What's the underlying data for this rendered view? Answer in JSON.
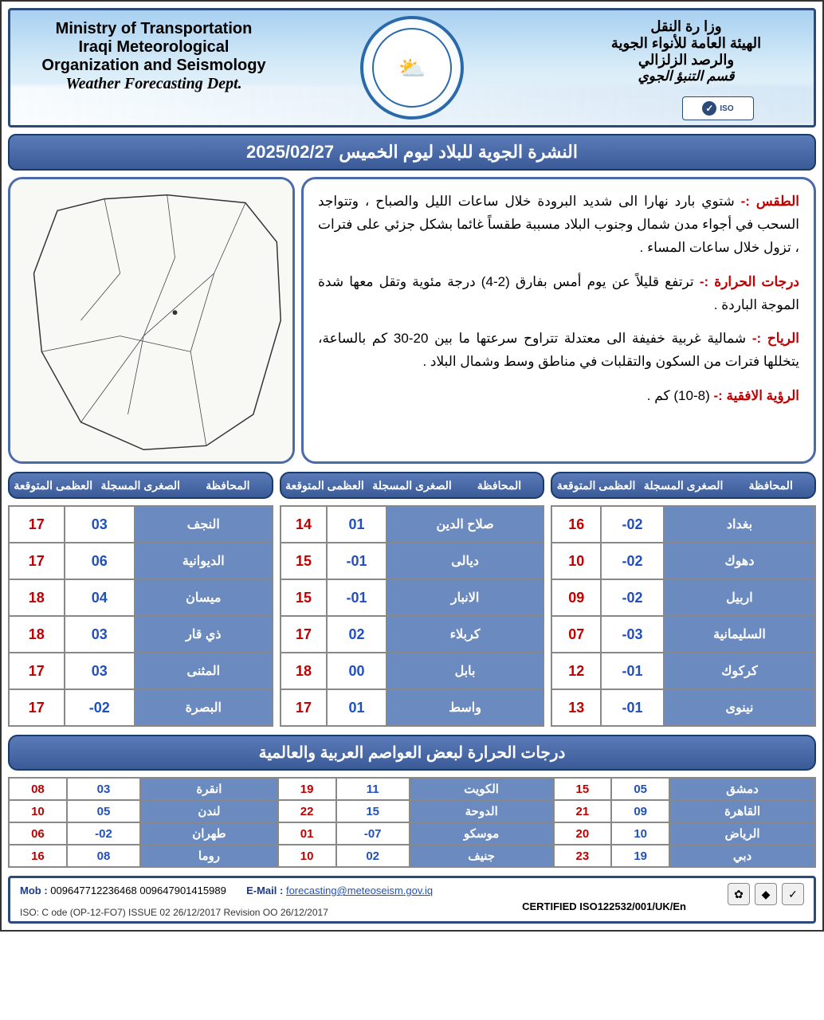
{
  "header": {
    "en": {
      "l1": "Ministry of Transportation",
      "l2": "Iraqi Meteorological",
      "l3": "Organization and Seismology",
      "l4": "Weather Forecasting Dept."
    },
    "ar": {
      "l1": "وزا رة النقل",
      "l2": "الهيئة العامة للأنواء الجوية",
      "l3": "والرصد الزلزالي",
      "l4": "قسم التنبؤ الجوي"
    },
    "iso_badge": "ISO",
    "logo_emoji": "⛅"
  },
  "title": "النشرة الجوية للبلاد ليوم الخميس 2025/02/27",
  "forecast": {
    "weather_label": "الطقس :-",
    "weather_text": "شتوي بارد نهارا الى شديد البرودة خلال ساعات الليل والصباح ، وتتواجد السحب في أجواء مدن شمال وجنوب البلاد مسببة طقساً غائما بشكل جزئي على فترات ، تزول خلال ساعات المساء .",
    "temp_label": "درجات الحرارة :-",
    "temp_text": "ترتفع قليلاً عن يوم أمس بفارق (2-4) درجة مئوية وتقل معها شدة الموجة الباردة .",
    "wind_label": "الرياح :-",
    "wind_text": "شمالية غربية خفيفة الى معتدلة تتراوح سرعتها ما بين 20-30 كم بالساعة، يتخللها فترات من السكون والتقلبات في مناطق وسط وشمال البلاد .",
    "vis_label": "الرؤية الافقية :-",
    "vis_text": "(8-10) كم ."
  },
  "table_header": {
    "gov": "المحافظة",
    "min": "الصغرى المسجلة",
    "max": "العظمى المتوقعة"
  },
  "iraq_cols": [
    [
      {
        "gov": "بغداد",
        "min": "02-",
        "max": "16"
      },
      {
        "gov": "دهوك",
        "min": "02-",
        "max": "10"
      },
      {
        "gov": "اربيل",
        "min": "02-",
        "max": "09"
      },
      {
        "gov": "السليمانية",
        "min": "03-",
        "max": "07"
      },
      {
        "gov": "كركوك",
        "min": "01-",
        "max": "12"
      },
      {
        "gov": "نينوى",
        "min": "01-",
        "max": "13"
      }
    ],
    [
      {
        "gov": "صلاح الدين",
        "min": "01",
        "max": "14"
      },
      {
        "gov": "ديالى",
        "min": "01-",
        "max": "15"
      },
      {
        "gov": "الانبار",
        "min": "01-",
        "max": "15"
      },
      {
        "gov": "كربلاء",
        "min": "02",
        "max": "17"
      },
      {
        "gov": "بابل",
        "min": "00",
        "max": "18"
      },
      {
        "gov": "واسط",
        "min": "01",
        "max": "17"
      }
    ],
    [
      {
        "gov": "النجف",
        "min": "03",
        "max": "17"
      },
      {
        "gov": "الديوانية",
        "min": "06",
        "max": "17"
      },
      {
        "gov": "ميسان",
        "min": "04",
        "max": "18"
      },
      {
        "gov": "ذي قار",
        "min": "03",
        "max": "18"
      },
      {
        "gov": "المثنى",
        "min": "03",
        "max": "17"
      },
      {
        "gov": "البصرة",
        "min": "02-",
        "max": "17"
      }
    ]
  ],
  "world_title": "درجات الحرارة لبعض العواصم العربية والعالمية",
  "world_rows": [
    [
      {
        "city": "دمشق",
        "min": "05",
        "max": "15"
      },
      {
        "city": "الكويت",
        "min": "11",
        "max": "19"
      },
      {
        "city": "انقرة",
        "min": "03",
        "max": "08"
      }
    ],
    [
      {
        "city": "القاهرة",
        "min": "09",
        "max": "21"
      },
      {
        "city": "الدوحة",
        "min": "15",
        "max": "22"
      },
      {
        "city": "لندن",
        "min": "05",
        "max": "10"
      }
    ],
    [
      {
        "city": "الرياض",
        "min": "10",
        "max": "20"
      },
      {
        "city": "موسكو",
        "min": "07-",
        "max": "01"
      },
      {
        "city": "طهران",
        "min": "02-",
        "max": "06"
      }
    ],
    [
      {
        "city": "دبي",
        "min": "19",
        "max": "23"
      },
      {
        "city": "جنيف",
        "min": "02",
        "max": "10"
      },
      {
        "city": "روما",
        "min": "08",
        "max": "16"
      }
    ]
  ],
  "footer": {
    "mob_label": "Mob :",
    "mob": "009647712236468   009647901415989",
    "email_label": "E-Mail :",
    "email": "forecasting@meteoseism.gov.iq",
    "cert": "CERTIFIED ISO122532/001/UK/En",
    "iso_line": "ISO:  C ode (OP-12-FO7)   ISSUE  02  26/12/2017  Revision   OO   26/12/2017"
  },
  "colors": {
    "header_blue": "#3a5a98",
    "border_blue": "#2a4a7a",
    "cell_blue": "#6a8ac0",
    "red": "#c00000",
    "value_blue": "#2050c0"
  }
}
